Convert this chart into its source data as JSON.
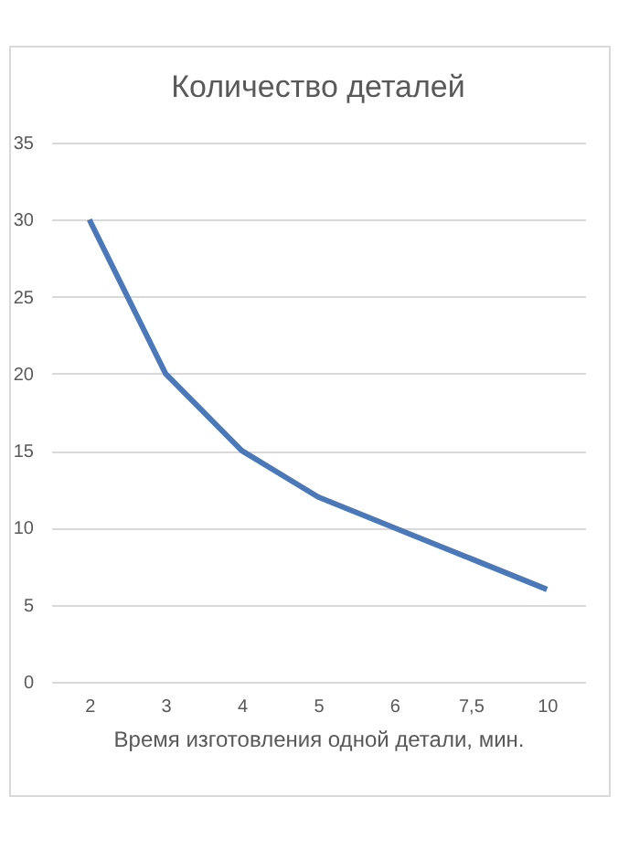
{
  "chart_data": {
    "type": "line",
    "title": "Количество деталей",
    "xlabel": "Время изготовления одной детали, мин.",
    "categories": [
      "2",
      "3",
      "4",
      "5",
      "6",
      "7,5",
      "10"
    ],
    "series": [
      {
        "color": "#4a78b8",
        "values": [
          30,
          20,
          15,
          12,
          10,
          8,
          6
        ]
      }
    ],
    "ylim": [
      0,
      35
    ],
    "yticks": [
      0,
      5,
      10,
      15,
      20,
      25,
      30,
      35
    ],
    "grid": "y",
    "legend": false,
    "marker": "none",
    "line_style": "solid"
  }
}
